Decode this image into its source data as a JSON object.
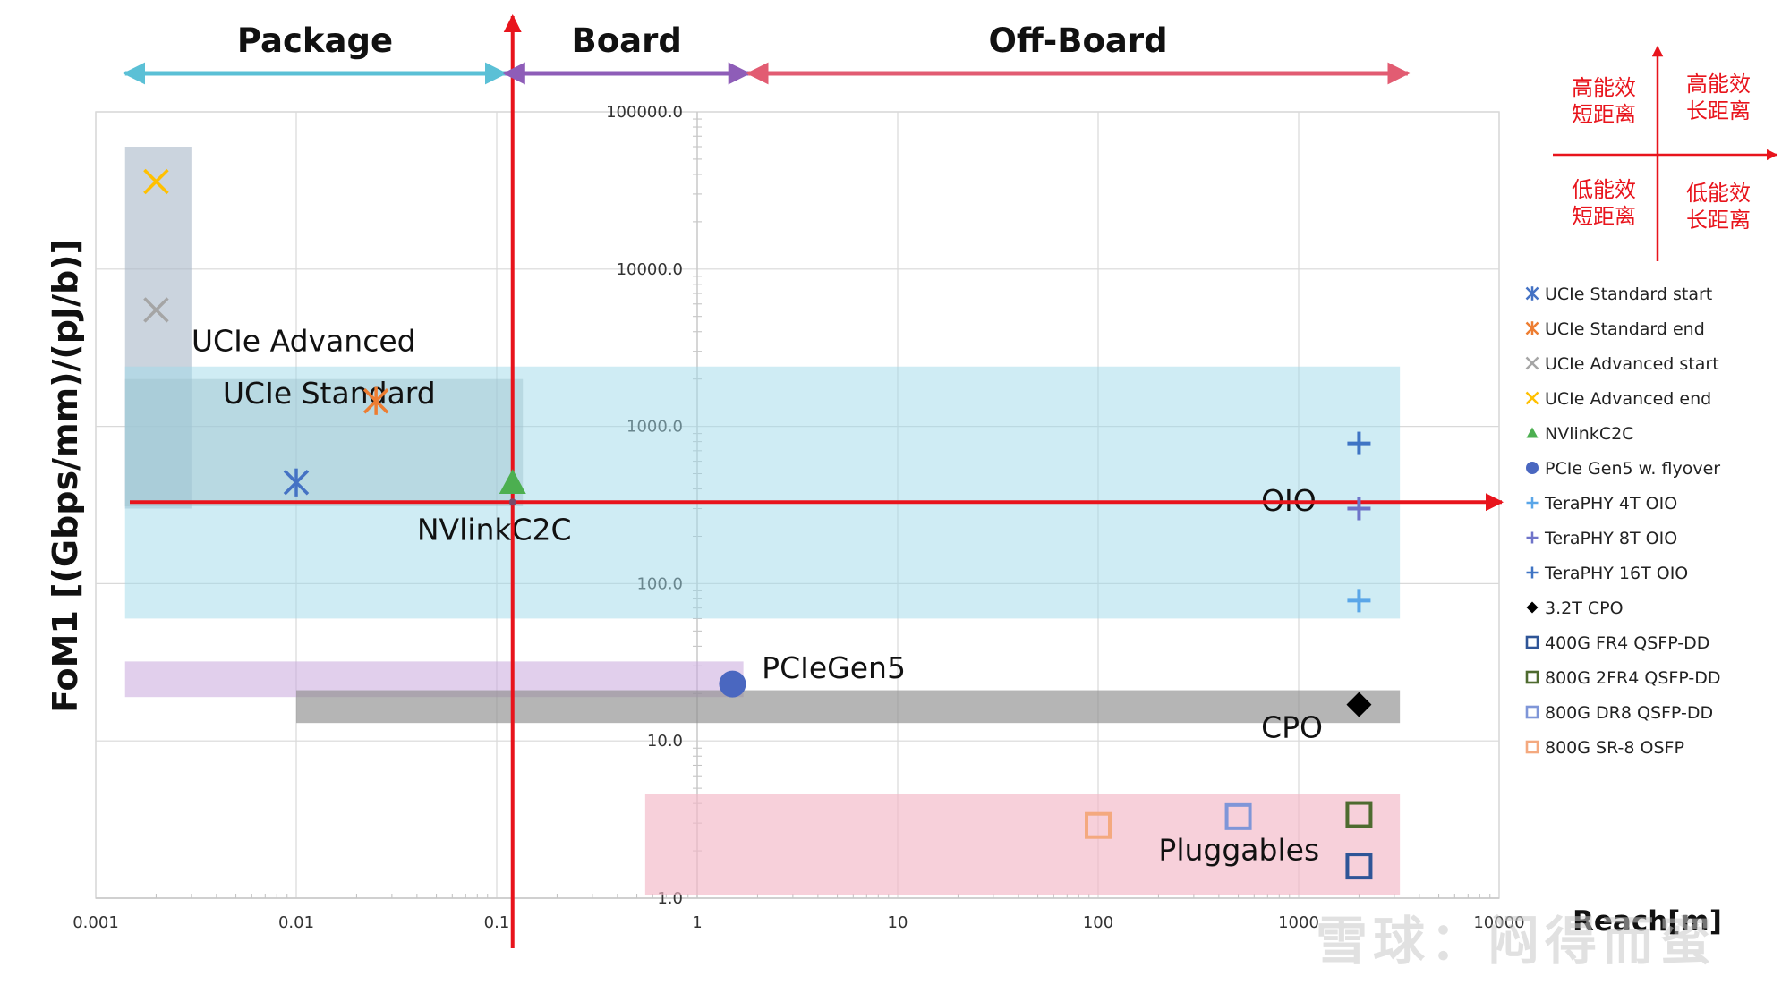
{
  "chart_data": {
    "type": "scatter",
    "xscale": "log",
    "yscale": "log",
    "xlim": [
      0.001,
      10000
    ],
    "ylim": [
      1,
      100000
    ],
    "xlabel": "Reach[m]",
    "ylabel": "FoM1 [(Gbps/mm)/(pJ/b)]",
    "xticks": [
      {
        "v": 0.001,
        "label": "0.001"
      },
      {
        "v": 0.01,
        "label": "0.01"
      },
      {
        "v": 0.1,
        "label": "0.1"
      },
      {
        "v": 1,
        "label": "1"
      },
      {
        "v": 10,
        "label": "10"
      },
      {
        "v": 100,
        "label": "100"
      },
      {
        "v": 1000,
        "label": "1000"
      },
      {
        "v": 10000,
        "label": "10000"
      }
    ],
    "yticks": [
      {
        "v": 1,
        "label": "1.0"
      },
      {
        "v": 10,
        "label": "10.0"
      },
      {
        "v": 100,
        "label": "100.0"
      },
      {
        "v": 1000,
        "label": "1000.0"
      },
      {
        "v": 10000,
        "label": "10000.0"
      },
      {
        "v": 100000,
        "label": "100000.0"
      }
    ],
    "grid": true,
    "legend_position": "right",
    "regions": [
      {
        "id": "ucie-advanced-region",
        "label": "UCIe Advanced",
        "x": [
          0.0014,
          0.003
        ],
        "y": [
          300,
          60000
        ],
        "color": "#a9b7c8",
        "opacity": 0.6
      },
      {
        "id": "ucie-standard-region",
        "label": "UCIe Standard",
        "x": [
          0.0014,
          0.135
        ],
        "y": [
          310,
          2000
        ],
        "color": "#9aa8b0",
        "opacity": 0.45
      },
      {
        "id": "oio-region",
        "label": "OIO",
        "x": [
          0.0014,
          3200
        ],
        "y": [
          60,
          2400
        ],
        "color": "#9fd9ea",
        "opacity": 0.5
      },
      {
        "id": "pciegen5-region",
        "label": "PCIeGen5",
        "x": [
          0.0014,
          1.7
        ],
        "y": [
          19,
          32
        ],
        "color": "#c9a8dc",
        "opacity": 0.55
      },
      {
        "id": "cpo-region",
        "label": "CPO",
        "x": [
          0.01,
          3200
        ],
        "y": [
          13,
          21
        ],
        "color": "#8e8e8e",
        "opacity": 0.65
      },
      {
        "id": "pluggables-region",
        "label": "Pluggables",
        "x": [
          0.55,
          3200
        ],
        "y": [
          1.05,
          4.6
        ],
        "color": "#f3b7c6",
        "opacity": 0.65
      }
    ],
    "series": [
      {
        "name": "UCIe Standard start",
        "marker": "star",
        "color": "#4472c4",
        "points": [
          {
            "x": 0.01,
            "y": 440
          }
        ]
      },
      {
        "name": "UCIe Standard end",
        "marker": "star",
        "color": "#ed7d31",
        "points": [
          {
            "x": 0.025,
            "y": 1450
          }
        ]
      },
      {
        "name": "UCIe Advanced start",
        "marker": "x",
        "color": "#a5a5a5",
        "points": [
          {
            "x": 0.002,
            "y": 5500
          }
        ]
      },
      {
        "name": "UCIe Advanced end",
        "marker": "x",
        "color": "#ffc000",
        "points": [
          {
            "x": 0.002,
            "y": 36000
          }
        ]
      },
      {
        "name": "NVlinkC2C",
        "marker": "triangle",
        "color": "#4caf50",
        "points": [
          {
            "x": 0.12,
            "y": 440
          }
        ]
      },
      {
        "name": "PCIe Gen5 w. flyover",
        "marker": "circle",
        "color": "#4a67c0",
        "points": [
          {
            "x": 1.5,
            "y": 23
          }
        ]
      },
      {
        "name": "TeraPHY 4T OIO",
        "marker": "plus",
        "color": "#5aa6e8",
        "points": [
          {
            "x": 2000,
            "y": 78
          }
        ]
      },
      {
        "name": "TeraPHY 8T OIO",
        "marker": "plus",
        "color": "#6f74c9",
        "points": [
          {
            "x": 2000,
            "y": 300
          }
        ]
      },
      {
        "name": "TeraPHY 16T OIO",
        "marker": "plus",
        "color": "#3f74c4",
        "points": [
          {
            "x": 2000,
            "y": 780
          }
        ]
      },
      {
        "name": "3.2T CPO",
        "marker": "diamond",
        "color": "#000000",
        "points": [
          {
            "x": 2000,
            "y": 17
          }
        ]
      },
      {
        "name": "400G FR4 QSFP-DD",
        "marker": "square",
        "color": "#2f5597",
        "points": [
          {
            "x": 2000,
            "y": 1.6
          }
        ]
      },
      {
        "name": "800G 2FR4 QSFP-DD",
        "marker": "square",
        "color": "#4e6b2f",
        "points": [
          {
            "x": 2000,
            "y": 3.4
          }
        ]
      },
      {
        "name": "800G DR8 QSFP-DD",
        "marker": "square",
        "color": "#7f96d8",
        "points": [
          {
            "x": 500,
            "y": 3.3
          }
        ]
      },
      {
        "name": "800G SR-8 OSFP",
        "marker": "square",
        "color": "#f4a97f",
        "points": [
          {
            "x": 100,
            "y": 2.9
          }
        ]
      }
    ],
    "region_labels": [
      {
        "text": "UCIe Advanced",
        "x": 0.003,
        "y": 3000
      },
      {
        "text": "UCIe Standard",
        "x": 0.0043,
        "y": 1400
      },
      {
        "text": "NVlinkC2C",
        "x": 0.04,
        "y": 190
      },
      {
        "text": "OIO",
        "x": 650,
        "y": 290
      },
      {
        "text": "PCIeGen5",
        "x": 2.1,
        "y": 25
      },
      {
        "text": "CPO",
        "x": 650,
        "y": 10.5
      },
      {
        "text": "Pluggables",
        "x": 200,
        "y": 1.75
      }
    ],
    "axes_crosshair": {
      "x": 0.12,
      "y": 330
    },
    "distance_bands": [
      {
        "label": "Package",
        "x": [
          0.0014,
          0.11
        ],
        "color": "#5bc0d6"
      },
      {
        "label": "Board",
        "x": [
          0.11,
          1.8
        ],
        "color": "#8e5db8"
      },
      {
        "label": "Off-Board",
        "x": [
          1.8,
          3500
        ],
        "color": "#e25c72"
      }
    ],
    "quadrant_legend": {
      "top_left": [
        "高能效",
        "短距离"
      ],
      "top_right": [
        "高能效",
        "长距离"
      ],
      "bottom_left": [
        "低能效",
        "短距离"
      ],
      "bottom_right": [
        "低能效",
        "长距离"
      ],
      "color": "#e8141c"
    }
  },
  "watermark": "雪球：闷得而蜜"
}
